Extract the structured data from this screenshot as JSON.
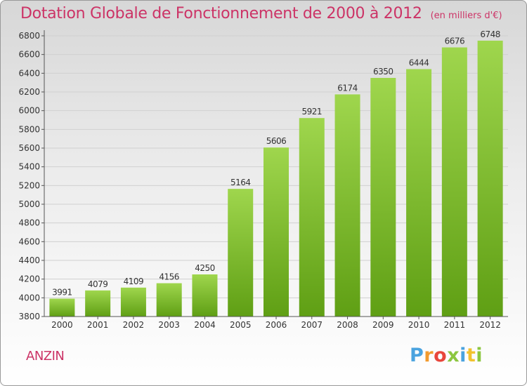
{
  "header": {
    "title": "Dotation Globale de Fonctionnement de 2000 à 2012",
    "unit": "(en milliers d'€)"
  },
  "footer": {
    "commune": "ANZIN",
    "brand": "Proxiti",
    "brand_colors": [
      "#4aa3df",
      "#f29a2e",
      "#e8463c",
      "#8cc63f",
      "#4aa3df",
      "#f2c22e",
      "#8cc63f"
    ]
  },
  "colors": {
    "title": "#cc3366",
    "bar_light": "#9fd64d",
    "bar_dark": "#5f9f14",
    "grid": "#d0d0d0",
    "axis": "#555555"
  },
  "chart_data": {
    "type": "bar",
    "categories": [
      "2000",
      "2001",
      "2002",
      "2003",
      "2004",
      "2005",
      "2006",
      "2007",
      "2008",
      "2009",
      "2010",
      "2011",
      "2012"
    ],
    "values": [
      3991,
      4079,
      4109,
      4156,
      4250,
      5164,
      5606,
      5921,
      6174,
      6350,
      6444,
      6676,
      6748
    ],
    "ylim": [
      3800,
      6800
    ],
    "yticks": [
      3800,
      4000,
      4200,
      4400,
      4600,
      4800,
      5000,
      5200,
      5400,
      5600,
      5800,
      6000,
      6200,
      6400,
      6600,
      6800
    ],
    "grid": true,
    "data_labels": true
  }
}
